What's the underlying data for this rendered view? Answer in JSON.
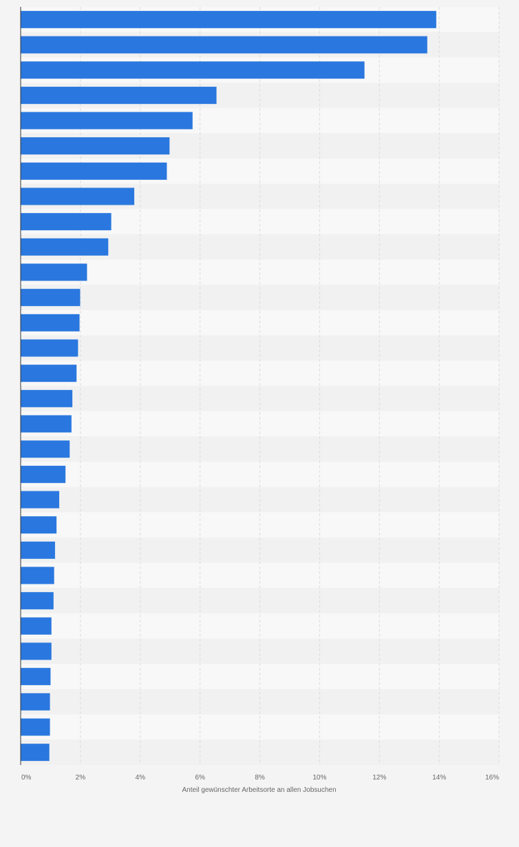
{
  "colors": {
    "bar": "#2a78df",
    "plot_background_light": "#f8f8f8",
    "plot_background_dark": "#f1f1f1",
    "gridline": "#dcdcdc",
    "axis_line": "#333333",
    "text": "#666666",
    "page_background": "#f4f4f4"
  },
  "chart_data": {
    "type": "bar",
    "orientation": "horizontal",
    "values": [
      13.9,
      13.6,
      11.5,
      6.55,
      5.75,
      4.98,
      4.89,
      3.8,
      3.03,
      2.93,
      2.22,
      1.99,
      1.97,
      1.92,
      1.87,
      1.73,
      1.7,
      1.64,
      1.5,
      1.29,
      1.2,
      1.15,
      1.12,
      1.1,
      1.03,
      1.03,
      1.0,
      0.98,
      0.98,
      0.96
    ],
    "xlim": [
      0,
      16
    ],
    "xticks": [
      0,
      2,
      4,
      6,
      8,
      10,
      12,
      14,
      16
    ],
    "xtick_labels": [
      "0%",
      "2%",
      "4%",
      "6%",
      "8%",
      "10%",
      "12%",
      "14%",
      "16%"
    ],
    "xlabel": "Anteil gewünschter Arbeitsorte an allen Jobsuchen",
    "grid": true,
    "legend": "none"
  }
}
